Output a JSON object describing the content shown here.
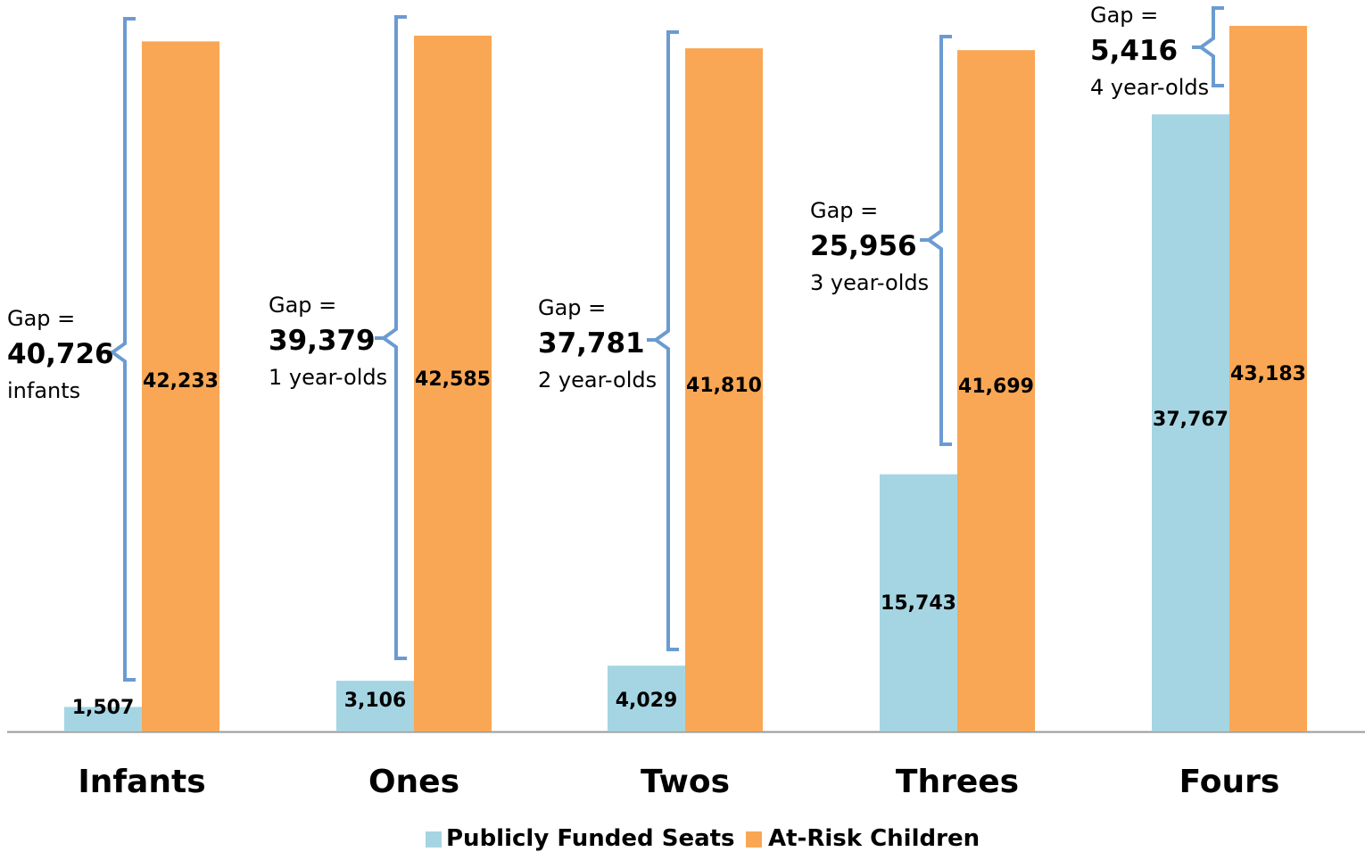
{
  "chart_data": {
    "type": "bar",
    "title": "",
    "xlabel": "",
    "ylabel": "",
    "ylim": [
      0,
      45000
    ],
    "grid": false,
    "legend_position": "bottom",
    "categories": [
      "Infants",
      "Ones",
      "Twos",
      "Threes",
      "Fours"
    ],
    "series": [
      {
        "name": "Publicly Funded Seats",
        "color": "#a5d5e2",
        "values": [
          1507,
          3106,
          4029,
          15743,
          37767
        ],
        "labels": [
          "1,507",
          "3,106",
          "4,029",
          "15,743",
          "37,767"
        ]
      },
      {
        "name": "At-Risk Children",
        "color": "#f9a755",
        "values": [
          42233,
          42585,
          41810,
          41699,
          43183
        ],
        "labels": [
          "42,233",
          "42,585",
          "41,810",
          "41,699",
          "43,183"
        ]
      }
    ],
    "annotations": [
      {
        "category": "Infants",
        "line1": "Gap =",
        "value": "40,726",
        "line3": "infants"
      },
      {
        "category": "Ones",
        "line1": "Gap =",
        "value": "39,379",
        "line3": "1 year-olds"
      },
      {
        "category": "Twos",
        "line1": "Gap =",
        "value": "37,781",
        "line3": "2 year-olds"
      },
      {
        "category": "Threes",
        "line1": "Gap =",
        "value": "25,956",
        "line3": "3 year-olds"
      },
      {
        "category": "Fours",
        "line1": "Gap =",
        "value": "5,416",
        "line3": "4 year-olds"
      }
    ],
    "bracket_color": "#6b9bd1",
    "axis_color": "#999999"
  }
}
